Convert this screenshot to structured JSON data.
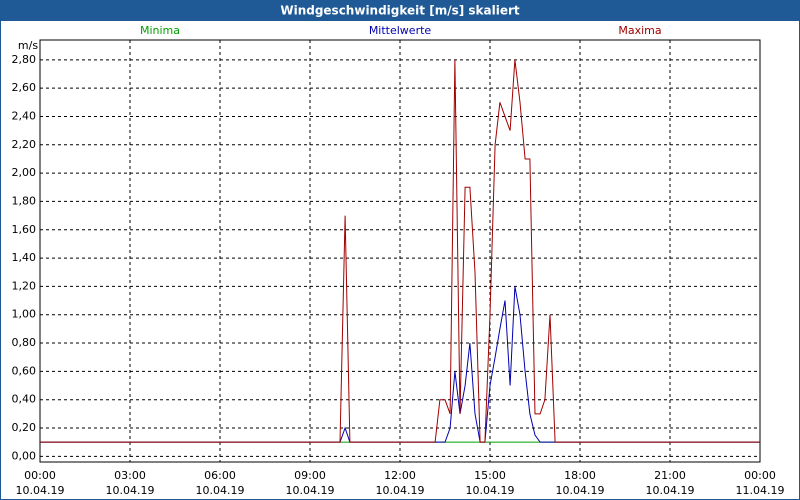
{
  "chart_data": {
    "type": "line",
    "title": "Windgeschwindigkeit [m/s] skaliert",
    "y_label": "m/s",
    "x": [
      0,
      10,
      10.17,
      10.33,
      13.17,
      13.33,
      13.5,
      13.67,
      13.83,
      14,
      14.17,
      14.33,
      14.5,
      14.67,
      14.83,
      15,
      15.17,
      15.33,
      15.5,
      15.67,
      15.83,
      16,
      16.17,
      16.33,
      16.5,
      16.67,
      16.83,
      17,
      17.17,
      24
    ],
    "series": [
      {
        "name": "Minima",
        "color": "#00a000",
        "values": [
          0.1,
          0.1,
          0.1,
          0.1,
          0.1,
          0.1,
          0.1,
          0.1,
          0.1,
          0.1,
          0.1,
          0.1,
          0.1,
          0.1,
          0.1,
          0.1,
          0.1,
          0.1,
          0.1,
          0.1,
          0.1,
          0.1,
          0.1,
          0.1,
          0.1,
          0.1,
          0.1,
          0.1,
          0.1,
          0.1
        ]
      },
      {
        "name": "Mittelwerte",
        "color": "#0000b0",
        "values": [
          0.1,
          0.1,
          0.2,
          0.1,
          0.1,
          0.1,
          0.1,
          0.2,
          0.6,
          0.3,
          0.5,
          0.8,
          0.3,
          0.1,
          0.1,
          0.5,
          0.7,
          0.9,
          1.1,
          0.5,
          1.2,
          1.0,
          0.6,
          0.3,
          0.15,
          0.1,
          0.1,
          0.1,
          0.1,
          0.1
        ]
      },
      {
        "name": "Maxima",
        "color": "#a00000",
        "values": [
          0.1,
          0.1,
          1.7,
          0.1,
          0.1,
          0.4,
          0.4,
          0.3,
          2.8,
          0.3,
          1.9,
          1.9,
          1.3,
          0.1,
          0.1,
          1.0,
          2.2,
          2.5,
          2.4,
          2.3,
          2.8,
          2.5,
          2.1,
          2.1,
          0.3,
          0.3,
          0.4,
          1.0,
          0.1,
          0.1
        ]
      }
    ],
    "xlim": [
      0,
      24
    ],
    "ylim": [
      -0.04,
      2.94
    ],
    "xticks": [
      {
        "value": 0,
        "label": "00:00",
        "date": "10.04.19"
      },
      {
        "value": 3,
        "label": "03:00",
        "date": "10.04.19"
      },
      {
        "value": 6,
        "label": "06:00",
        "date": "10.04.19"
      },
      {
        "value": 9,
        "label": "09:00",
        "date": "10.04.19"
      },
      {
        "value": 12,
        "label": "12:00",
        "date": "10.04.19"
      },
      {
        "value": 15,
        "label": "15:00",
        "date": "10.04.19"
      },
      {
        "value": 18,
        "label": "18:00",
        "date": "10.04.19"
      },
      {
        "value": 21,
        "label": "21:00",
        "date": "10.04.19"
      },
      {
        "value": 24,
        "label": "00:00",
        "date": "11.04.19"
      }
    ],
    "yticks": [
      {
        "value": 0,
        "label": "0,00"
      },
      {
        "value": 0.2,
        "label": "0,20"
      },
      {
        "value": 0.4,
        "label": "0,40"
      },
      {
        "value": 0.6,
        "label": "0,60"
      },
      {
        "value": 0.8,
        "label": "0,80"
      },
      {
        "value": 1.0,
        "label": "1,00"
      },
      {
        "value": 1.2,
        "label": "1,20"
      },
      {
        "value": 1.4,
        "label": "1,40"
      },
      {
        "value": 1.6,
        "label": "1,60"
      },
      {
        "value": 1.8,
        "label": "1,80"
      },
      {
        "value": 2.0,
        "label": "2,00"
      },
      {
        "value": 2.2,
        "label": "2,20"
      },
      {
        "value": 2.4,
        "label": "2,40"
      },
      {
        "value": 2.6,
        "label": "2,60"
      },
      {
        "value": 2.8,
        "label": "2,80"
      }
    ],
    "grid": true
  }
}
